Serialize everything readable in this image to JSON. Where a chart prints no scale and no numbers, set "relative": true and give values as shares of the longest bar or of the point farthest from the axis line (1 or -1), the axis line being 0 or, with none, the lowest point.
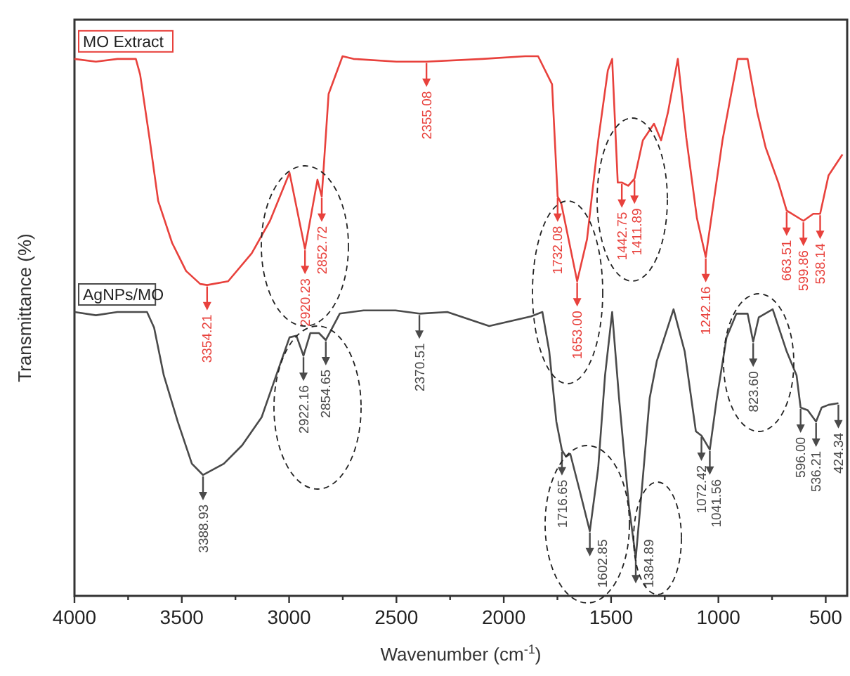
{
  "chart_data": {
    "type": "line",
    "relative": true,
    "xlabel": "Wavenumber (cm$^{-1}$)",
    "ylabel": "Transmittance (%)",
    "xlim": [
      4000,
      400
    ],
    "xticks": [
      4000,
      {
        "value": 3750,
        "label": null
      },
      3500,
      {
        "value": 3250,
        "label": null
      },
      3000,
      {
        "value": 2750,
        "label": null
      },
      2500,
      {
        "value": 2250,
        "label": null
      },
      2000,
      {
        "value": 1750,
        "label": null
      },
      1500,
      {
        "value": 1250,
        "label": null
      },
      1000,
      {
        "value": 750,
        "label": null
      },
      500
    ],
    "grid": false,
    "marker": "none",
    "line_style": "solid",
    "series": [
      {
        "name": "MO Extract",
        "color": "#e8413c",
        "x": [
          4000,
          3900,
          3800,
          3714,
          3694,
          3649,
          3610,
          3545,
          3480,
          3414,
          3382,
          3284,
          3174,
          3089,
          2998,
          2926,
          2868,
          2848,
          2816,
          2751,
          2700,
          2500,
          2360,
          2100,
          1900,
          1840,
          1775,
          1749,
          1732,
          1658,
          1612,
          1560,
          1515,
          1495,
          1469,
          1450,
          1420,
          1391,
          1352,
          1300,
          1267,
          1235,
          1189,
          1150,
          1100,
          1059,
          981,
          910,
          864,
          819,
          780,
          721,
          682,
          604,
          558,
          526,
          487,
          422
        ],
        "values": [
          0.995,
          0.99,
          0.995,
          0.995,
          0.966,
          0.844,
          0.732,
          0.654,
          0.602,
          0.578,
          0.576,
          0.583,
          0.635,
          0.695,
          0.784,
          0.643,
          0.771,
          0.74,
          0.93,
          1.0,
          0.995,
          0.99,
          0.99,
          0.995,
          1.0,
          1.0,
          0.948,
          0.74,
          0.727,
          0.583,
          0.661,
          0.844,
          0.974,
          0.995,
          0.766,
          0.766,
          0.76,
          0.773,
          0.844,
          0.875,
          0.844,
          0.896,
          0.995,
          0.85,
          0.7,
          0.628,
          0.844,
          0.995,
          0.995,
          0.896,
          0.831,
          0.766,
          0.714,
          0.695,
          0.708,
          0.708,
          0.779,
          0.818
        ]
      },
      {
        "name": "AgNPs/MO",
        "color": "#4a4a4a",
        "x": [
          4000,
          3900,
          3800,
          3662,
          3629,
          3584,
          3519,
          3453,
          3401,
          3304,
          3219,
          3128,
          3044,
          2998,
          2966,
          2933,
          2901,
          2861,
          2829,
          2764,
          2653,
          2504,
          2393,
          2263,
          2068,
          1873,
          1820,
          1788,
          1755,
          1729,
          1710,
          1690,
          1645,
          1599,
          1560,
          1528,
          1495,
          1463,
          1417,
          1385,
          1352,
          1320,
          1287,
          1209,
          1157,
          1105,
          1079,
          1040,
          1007,
          962,
          916,
          864,
          838,
          812,
          747,
          682,
          636,
          617,
          584,
          545,
          519,
          487,
          441
        ],
        "values": [
          0.526,
          0.52,
          0.526,
          0.526,
          0.497,
          0.409,
          0.323,
          0.245,
          0.224,
          0.245,
          0.279,
          0.331,
          0.427,
          0.479,
          0.482,
          0.445,
          0.487,
          0.487,
          0.474,
          0.523,
          0.529,
          0.529,
          0.523,
          0.526,
          0.5,
          0.518,
          0.526,
          0.453,
          0.323,
          0.27,
          0.258,
          0.263,
          0.193,
          0.12,
          0.237,
          0.409,
          0.526,
          0.367,
          0.167,
          0.07,
          0.219,
          0.367,
          0.435,
          0.531,
          0.453,
          0.305,
          0.297,
          0.271,
          0.367,
          0.479,
          0.523,
          0.523,
          0.471,
          0.516,
          0.531,
          0.453,
          0.409,
          0.349,
          0.344,
          0.323,
          0.349,
          0.354,
          0.357
        ]
      }
    ],
    "annotations": [
      {
        "text": "3354.21",
        "x": 3382,
        "y": 0.576
      },
      {
        "text": "2920.23",
        "x": 2926,
        "y": 0.643
      },
      {
        "text": "2852.72",
        "x": 2848,
        "y": 0.74
      },
      {
        "text": "2355.08",
        "x": 2360,
        "y": 0.99
      },
      {
        "text": "1732.08",
        "x": 1749,
        "y": 0.74
      },
      {
        "text": "1653.00",
        "x": 1658,
        "y": 0.583
      },
      {
        "text": "1442.75",
        "x": 1450,
        "y": 0.766
      },
      {
        "text": "1411.89",
        "x": 1391,
        "y": 0.773
      },
      {
        "text": "1242.16",
        "x": 1059,
        "y": 0.628
      },
      {
        "text": "663.51",
        "x": 682,
        "y": 0.714
      },
      {
        "text": "599.86",
        "x": 604,
        "y": 0.695
      },
      {
        "text": "538.14",
        "x": 526,
        "y": 0.708
      },
      {
        "text": "3388.93",
        "x": 3401,
        "y": 0.224
      },
      {
        "text": "2922.16",
        "x": 2933,
        "y": 0.445
      },
      {
        "text": "2854.65",
        "x": 2829,
        "y": 0.474
      },
      {
        "text": "2370.51",
        "x": 2393,
        "y": 0.523
      },
      {
        "text": "1716.65",
        "x": 1729,
        "y": 0.27
      },
      {
        "text": "1602.85",
        "x": 1599,
        "y": 0.12
      },
      {
        "text": "1384.89",
        "x": 1385,
        "y": 0.07
      },
      {
        "text": "1072.42",
        "x": 1079,
        "y": 0.297
      },
      {
        "text": "1041.56",
        "x": 1040,
        "y": 0.271
      },
      {
        "text": "823.60",
        "x": 838,
        "y": 0.471
      },
      {
        "text": "596.00",
        "x": 617,
        "y": 0.349
      },
      {
        "text": "536.21",
        "x": 545,
        "y": 0.323
      },
      {
        "text": "424.34",
        "x": 441,
        "y": 0.357
      }
    ]
  }
}
